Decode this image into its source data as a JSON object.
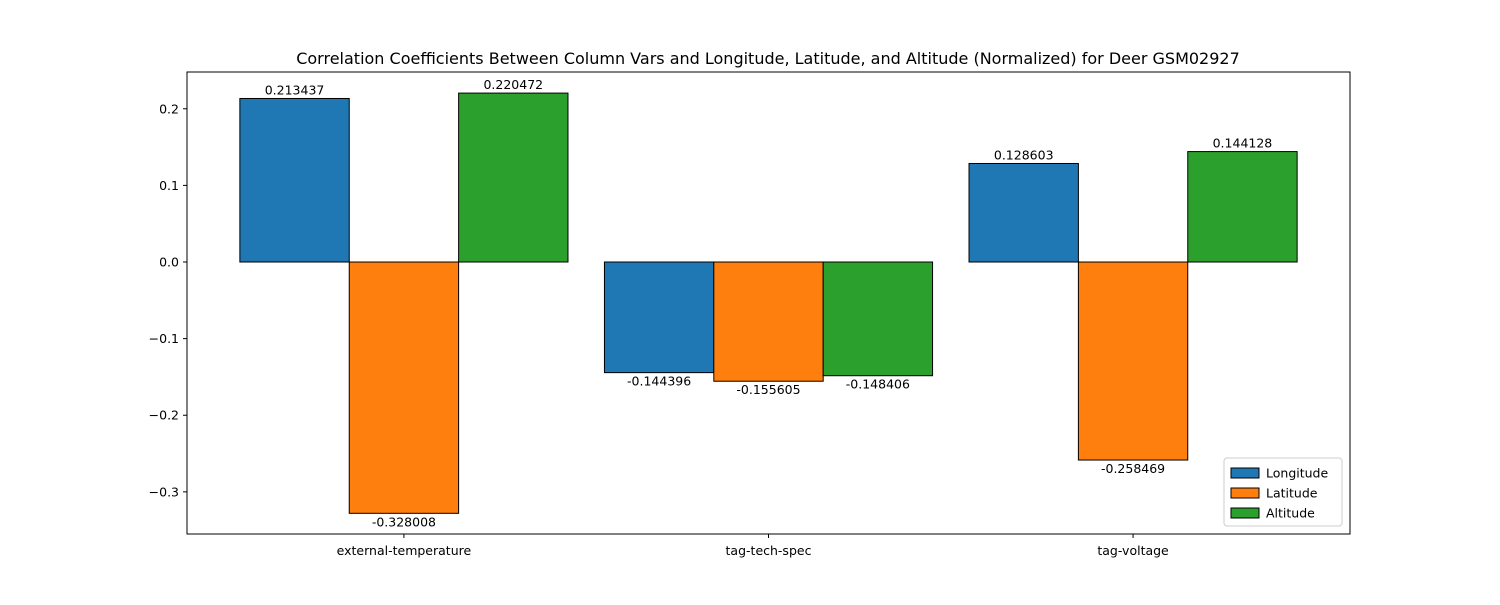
{
  "chart_data": {
    "type": "bar",
    "title": "Correlation Coefficients Between Column Vars and Longitude, Latitude, and Altitude (Normalized) for Deer GSM02927",
    "xlabel": "",
    "ylabel": "",
    "categories": [
      "external-temperature",
      "tag-tech-spec",
      "tag-voltage"
    ],
    "series": [
      {
        "name": "Longitude",
        "color": "#1f77b4",
        "values": [
          0.213437,
          -0.144396,
          0.128603
        ],
        "labels": [
          "0.213437",
          "-0.144396",
          "0.128603"
        ]
      },
      {
        "name": "Latitude",
        "color": "#ff7f0e",
        "values": [
          -0.328008,
          -0.155605,
          -0.258469
        ],
        "labels": [
          "-0.328008",
          "-0.155605",
          "-0.258469"
        ]
      },
      {
        "name": "Altitude",
        "color": "#2ca02c",
        "values": [
          0.220472,
          -0.148406,
          0.144128
        ],
        "labels": [
          "0.220472",
          "-0.148406",
          "0.144128"
        ]
      }
    ],
    "ylim": [
      -0.355,
      0.248
    ],
    "yticks": [
      -0.3,
      -0.2,
      -0.1,
      0.0,
      0.1,
      0.2
    ],
    "ytick_labels": [
      "−0.3",
      "−0.2",
      "−0.1",
      "0.0",
      "0.1",
      "0.2"
    ],
    "grid": false,
    "legend_position": "lower-right",
    "bar_edge_color": "#000000"
  }
}
